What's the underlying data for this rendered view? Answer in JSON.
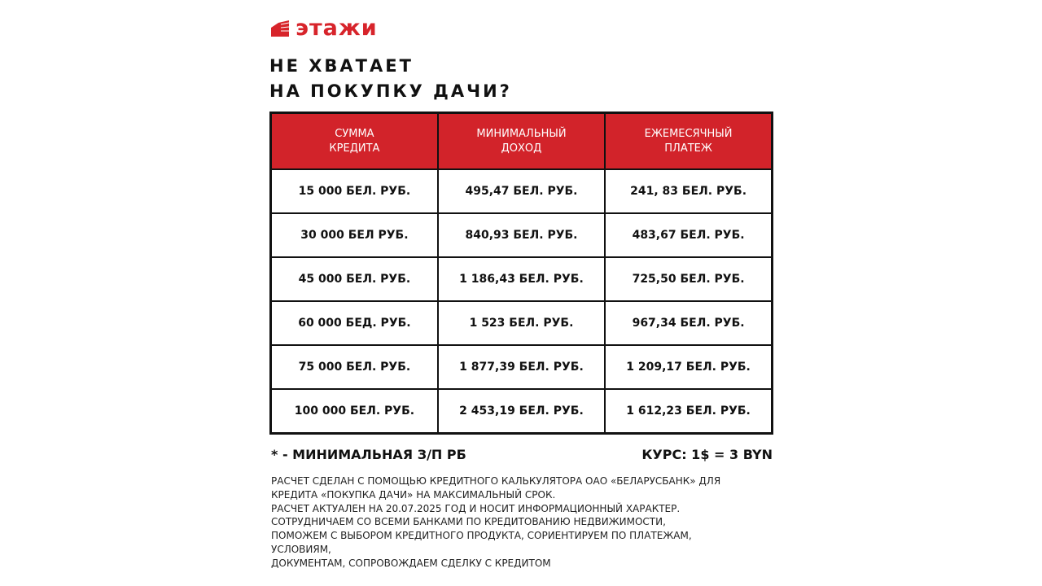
{
  "brand": {
    "name": "этажи",
    "color": "#d7242b"
  },
  "title": [
    "НЕ ХВАТАЕТ",
    "НА ПОКУПКУ ДАЧИ?"
  ],
  "table": {
    "header_color": "#d2232a",
    "headers": [
      [
        "СУММА",
        "КРЕДИТА"
      ],
      [
        "МИНИМАЛЬНЫЙ",
        "ДОХОД"
      ],
      [
        "ЕЖЕМЕСЯЧНЫЙ",
        "ПЛАТЕЖ"
      ]
    ],
    "rows": [
      [
        "15 000 БЕЛ. РУБ.",
        "495,47 БЕЛ. РУБ.",
        "241, 83 БЕЛ. РУБ."
      ],
      [
        "30 000 БЕЛ РУБ.",
        "840,93 БЕЛ. РУБ.",
        "483,67 БЕЛ. РУБ."
      ],
      [
        "45 000 БЕЛ. РУБ.",
        "1 186,43 БЕЛ. РУБ.",
        "725,50 БЕЛ. РУБ."
      ],
      [
        "60 000 БЕД. РУБ.",
        "1 523 БЕЛ. РУБ.",
        "967,34 БЕЛ. РУБ."
      ],
      [
        "75 000 БЕЛ. РУБ.",
        "1 877,39 БЕЛ. РУБ.",
        "1 209,17 БЕЛ. РУБ."
      ],
      [
        "100 000 БЕЛ. РУБ.",
        "2 453,19 БЕЛ. РУБ.",
        "1 612,23 БЕЛ. РУБ."
      ]
    ]
  },
  "footnote": "* - МИНИМАЛЬНАЯ З/П РБ",
  "rate": "КУРС: 1$ = 3 BYN",
  "disclaimer": [
    "РАСЧЕТ СДЕЛАН С ПОМОЩЬЮ КРЕДИТНОГО КАЛЬКУЛЯТОРА ОАО «БЕЛАРУСБАНК» ДЛЯ",
    "КРЕДИТА «ПОКУПКА ДАЧИ» НА МАКСИМАЛЬНЫЙ СРОК.",
    "РАСЧЕТ АКТУАЛЕН НА 20.07.2025 ГОД И НОСИТ ИНФОРМАЦИОННЫЙ ХАРАКТЕР.",
    "СОТРУДНИЧАЕМ СО ВСЕМИ БАНКАМИ ПО КРЕДИТОВАНИЮ НЕДВИЖИМОСТИ,",
    "ПОМОЖЕМ С ВЫБОРОМ КРЕДИТНОГО ПРОДУКТА, СОРИЕНТИРУЕМ ПО ПЛАТЕЖАМ,",
    "УСЛОВИЯМ,",
    "ДОКУМЕНТАМ, СОПРОВОЖДАЕМ СДЕЛКУ С КРЕДИТОМ"
  ]
}
